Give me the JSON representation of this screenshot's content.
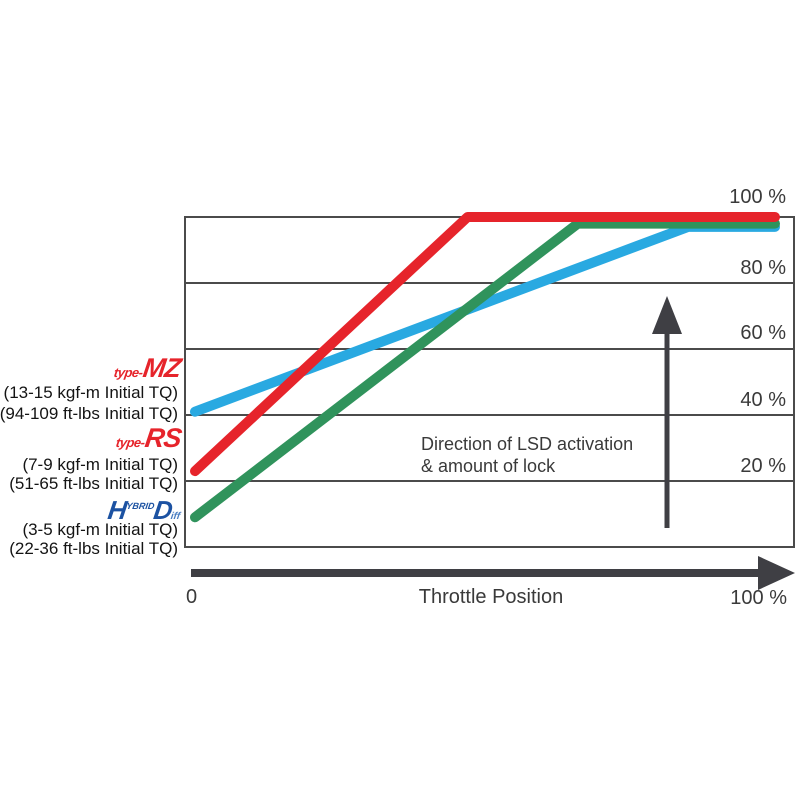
{
  "chart_data": {
    "type": "line",
    "title": "",
    "xlabel": "Throttle Position",
    "ylabel": "",
    "xlim": [
      0,
      100
    ],
    "ylim": [
      0,
      100
    ],
    "grid": "horizontal",
    "x_tick_labels": [
      "0",
      "100 %"
    ],
    "y_ticks": [
      100,
      80,
      60,
      40,
      20
    ],
    "y_tick_labels": [
      "100 %",
      "80 %",
      "60 %",
      "40 %",
      "20 %"
    ],
    "annotation": {
      "line1": "Direction of LSD activation",
      "line2": "& amount of lock"
    },
    "series": [
      {
        "name": "type-MZ",
        "color": "#29a9e1",
        "stroke_width": 10,
        "points": [
          [
            0,
            41
          ],
          [
            85,
            97
          ],
          [
            100,
            97
          ]
        ]
      },
      {
        "name": "HD Hybrid Diff",
        "color": "#30935c",
        "stroke_width": 10,
        "points": [
          [
            0,
            9
          ],
          [
            66,
            98
          ],
          [
            100,
            98
          ]
        ]
      },
      {
        "name": "type-RS",
        "color": "#e6242b",
        "stroke_width": 10,
        "points": [
          [
            0,
            23
          ],
          [
            47,
            100
          ],
          [
            100,
            100
          ]
        ]
      }
    ],
    "legend_position": "left"
  },
  "legend": {
    "mz": {
      "brand_prefix": "type-",
      "brand": "MZ",
      "line1": "(13-15 kgf-m Initial TQ)",
      "line2": "(94-109 ft-lbs Initial TQ)",
      "brand_color": "#e6242b"
    },
    "rs": {
      "brand_prefix": "type-",
      "brand": "RS",
      "line1": "(7-9 kgf-m Initial TQ)",
      "line2": "(51-65 ft-lbs Initial TQ)",
      "brand_color": "#e6242b"
    },
    "hd": {
      "brand_h": "H",
      "brand_sup": "YBRID",
      "brand_d": "D",
      "brand_sub": "iff",
      "line1": "(3-5 kgf-m Initial TQ)",
      "line2": "(22-36 ft-lbs Initial TQ)",
      "brand_color": "#1c52a2"
    }
  },
  "colors": {
    "axis_arrow": "#3f3f44",
    "gridline": "#4b4b4b",
    "tick_text": "#3a3a3a",
    "background": "#ffffff"
  }
}
